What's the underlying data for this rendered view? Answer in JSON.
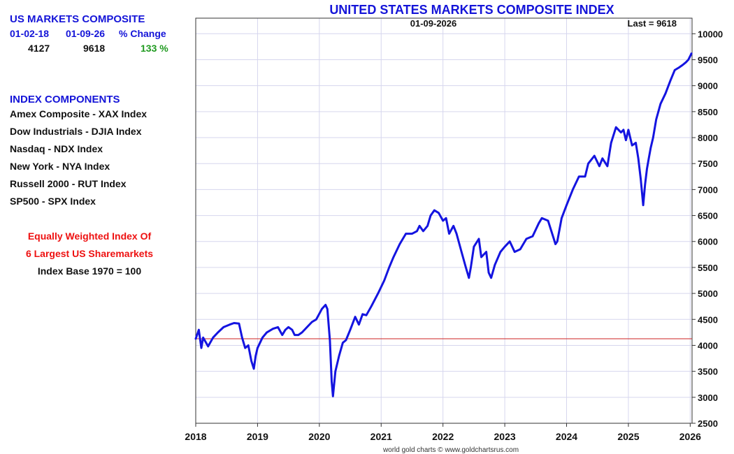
{
  "panel": {
    "title": "US MARKETS COMPOSITE",
    "col1_header": "01-02-18",
    "col2_header": "01-09-26",
    "col3_header": "% Change",
    "col1_value": "4127",
    "col2_value": "9618",
    "col3_value": "133 %",
    "change_color": "#1f9a1f"
  },
  "components": {
    "title": "INDEX COMPONENTS",
    "items": [
      "Amex Composite - XAX Index",
      "Dow Industrials - DJIA Index",
      "Nasdaq - NDX Index",
      "New York - NYA Index",
      "Russell 2000 - RUT Index",
      "SP500 - SPX Index"
    ]
  },
  "notes": {
    "line1": "Equally Weighted Index Of",
    "line2": "6 Largest US Sharemarkets",
    "line3": "Index Base 1970 = 100",
    "red_color": "#ee1111"
  },
  "chart_data": {
    "type": "line",
    "title": "UNITED STATES MARKETS COMPOSITE INDEX",
    "date_label": "01-09-2026",
    "last_label": "Last = 9618",
    "credit": "world gold charts © www.goldchartsrus.com",
    "xlim": [
      2018.0,
      2026.03
    ],
    "ylim": [
      2500,
      10300
    ],
    "x_ticks": [
      2018,
      2019,
      2020,
      2021,
      2022,
      2023,
      2024,
      2025,
      2026
    ],
    "y_ticks": [
      2500,
      3000,
      3500,
      4000,
      4500,
      5000,
      5500,
      6000,
      6500,
      7000,
      7500,
      8000,
      8500,
      9000,
      9500,
      10000
    ],
    "reference_line": 4127,
    "line_color": "#1414e0",
    "reference_color": "#cc2222",
    "grid_color": "#d6d6ee",
    "series": [
      {
        "name": "US Markets Composite",
        "x": [
          2018.0,
          2018.05,
          2018.09,
          2018.12,
          2018.2,
          2018.28,
          2018.36,
          2018.45,
          2018.55,
          2018.62,
          2018.7,
          2018.75,
          2018.8,
          2018.85,
          2018.9,
          2018.94,
          2018.97,
          2019.0,
          2019.08,
          2019.15,
          2019.25,
          2019.33,
          2019.4,
          2019.45,
          2019.5,
          2019.56,
          2019.6,
          2019.66,
          2019.72,
          2019.8,
          2019.88,
          2019.95,
          2020.04,
          2020.1,
          2020.13,
          2020.17,
          2020.2,
          2020.22,
          2020.26,
          2020.32,
          2020.38,
          2020.43,
          2020.5,
          2020.58,
          2020.64,
          2020.7,
          2020.76,
          2020.84,
          2020.95,
          2021.05,
          2021.13,
          2021.2,
          2021.3,
          2021.4,
          2021.5,
          2021.58,
          2021.62,
          2021.68,
          2021.75,
          2021.8,
          2021.86,
          2021.93,
          2022.0,
          2022.05,
          2022.1,
          2022.17,
          2022.22,
          2022.3,
          2022.37,
          2022.42,
          2022.45,
          2022.5,
          2022.58,
          2022.62,
          2022.7,
          2022.74,
          2022.78,
          2022.84,
          2022.93,
          2023.0,
          2023.08,
          2023.16,
          2023.25,
          2023.35,
          2023.45,
          2023.55,
          2023.6,
          2023.7,
          2023.78,
          2023.82,
          2023.85,
          2023.92,
          2024.0,
          2024.1,
          2024.2,
          2024.3,
          2024.35,
          2024.45,
          2024.53,
          2024.58,
          2024.66,
          2024.72,
          2024.8,
          2024.88,
          2024.92,
          2024.96,
          2025.0,
          2025.06,
          2025.12,
          2025.16,
          2025.2,
          2025.24,
          2025.27,
          2025.3,
          2025.33,
          2025.36,
          2025.4,
          2025.45,
          2025.52,
          2025.6,
          2025.68,
          2025.75,
          2025.82,
          2025.88,
          2025.93,
          2025.97,
          2026.02
        ],
        "values": [
          4127,
          4300,
          3950,
          4150,
          3980,
          4150,
          4250,
          4350,
          4400,
          4430,
          4420,
          4150,
          3950,
          4000,
          3700,
          3550,
          3800,
          3950,
          4150,
          4250,
          4320,
          4350,
          4200,
          4300,
          4350,
          4300,
          4200,
          4200,
          4250,
          4350,
          4450,
          4500,
          4700,
          4780,
          4700,
          4100,
          3300,
          3020,
          3500,
          3800,
          4050,
          4100,
          4300,
          4550,
          4400,
          4600,
          4580,
          4750,
          5000,
          5250,
          5500,
          5700,
          5950,
          6150,
          6150,
          6200,
          6300,
          6200,
          6300,
          6500,
          6600,
          6550,
          6400,
          6450,
          6150,
          6300,
          6150,
          5800,
          5500,
          5300,
          5500,
          5900,
          6050,
          5700,
          5800,
          5400,
          5300,
          5550,
          5800,
          5900,
          6000,
          5800,
          5850,
          6050,
          6100,
          6350,
          6450,
          6400,
          6100,
          5950,
          6000,
          6450,
          6700,
          7000,
          7250,
          7250,
          7500,
          7650,
          7450,
          7600,
          7450,
          7900,
          8200,
          8100,
          8150,
          7950,
          8150,
          7850,
          7900,
          7600,
          7200,
          6700,
          7100,
          7400,
          7600,
          7800,
          8000,
          8350,
          8650,
          8850,
          9100,
          9300,
          9350,
          9400,
          9450,
          9500,
          9618
        ]
      }
    ]
  }
}
